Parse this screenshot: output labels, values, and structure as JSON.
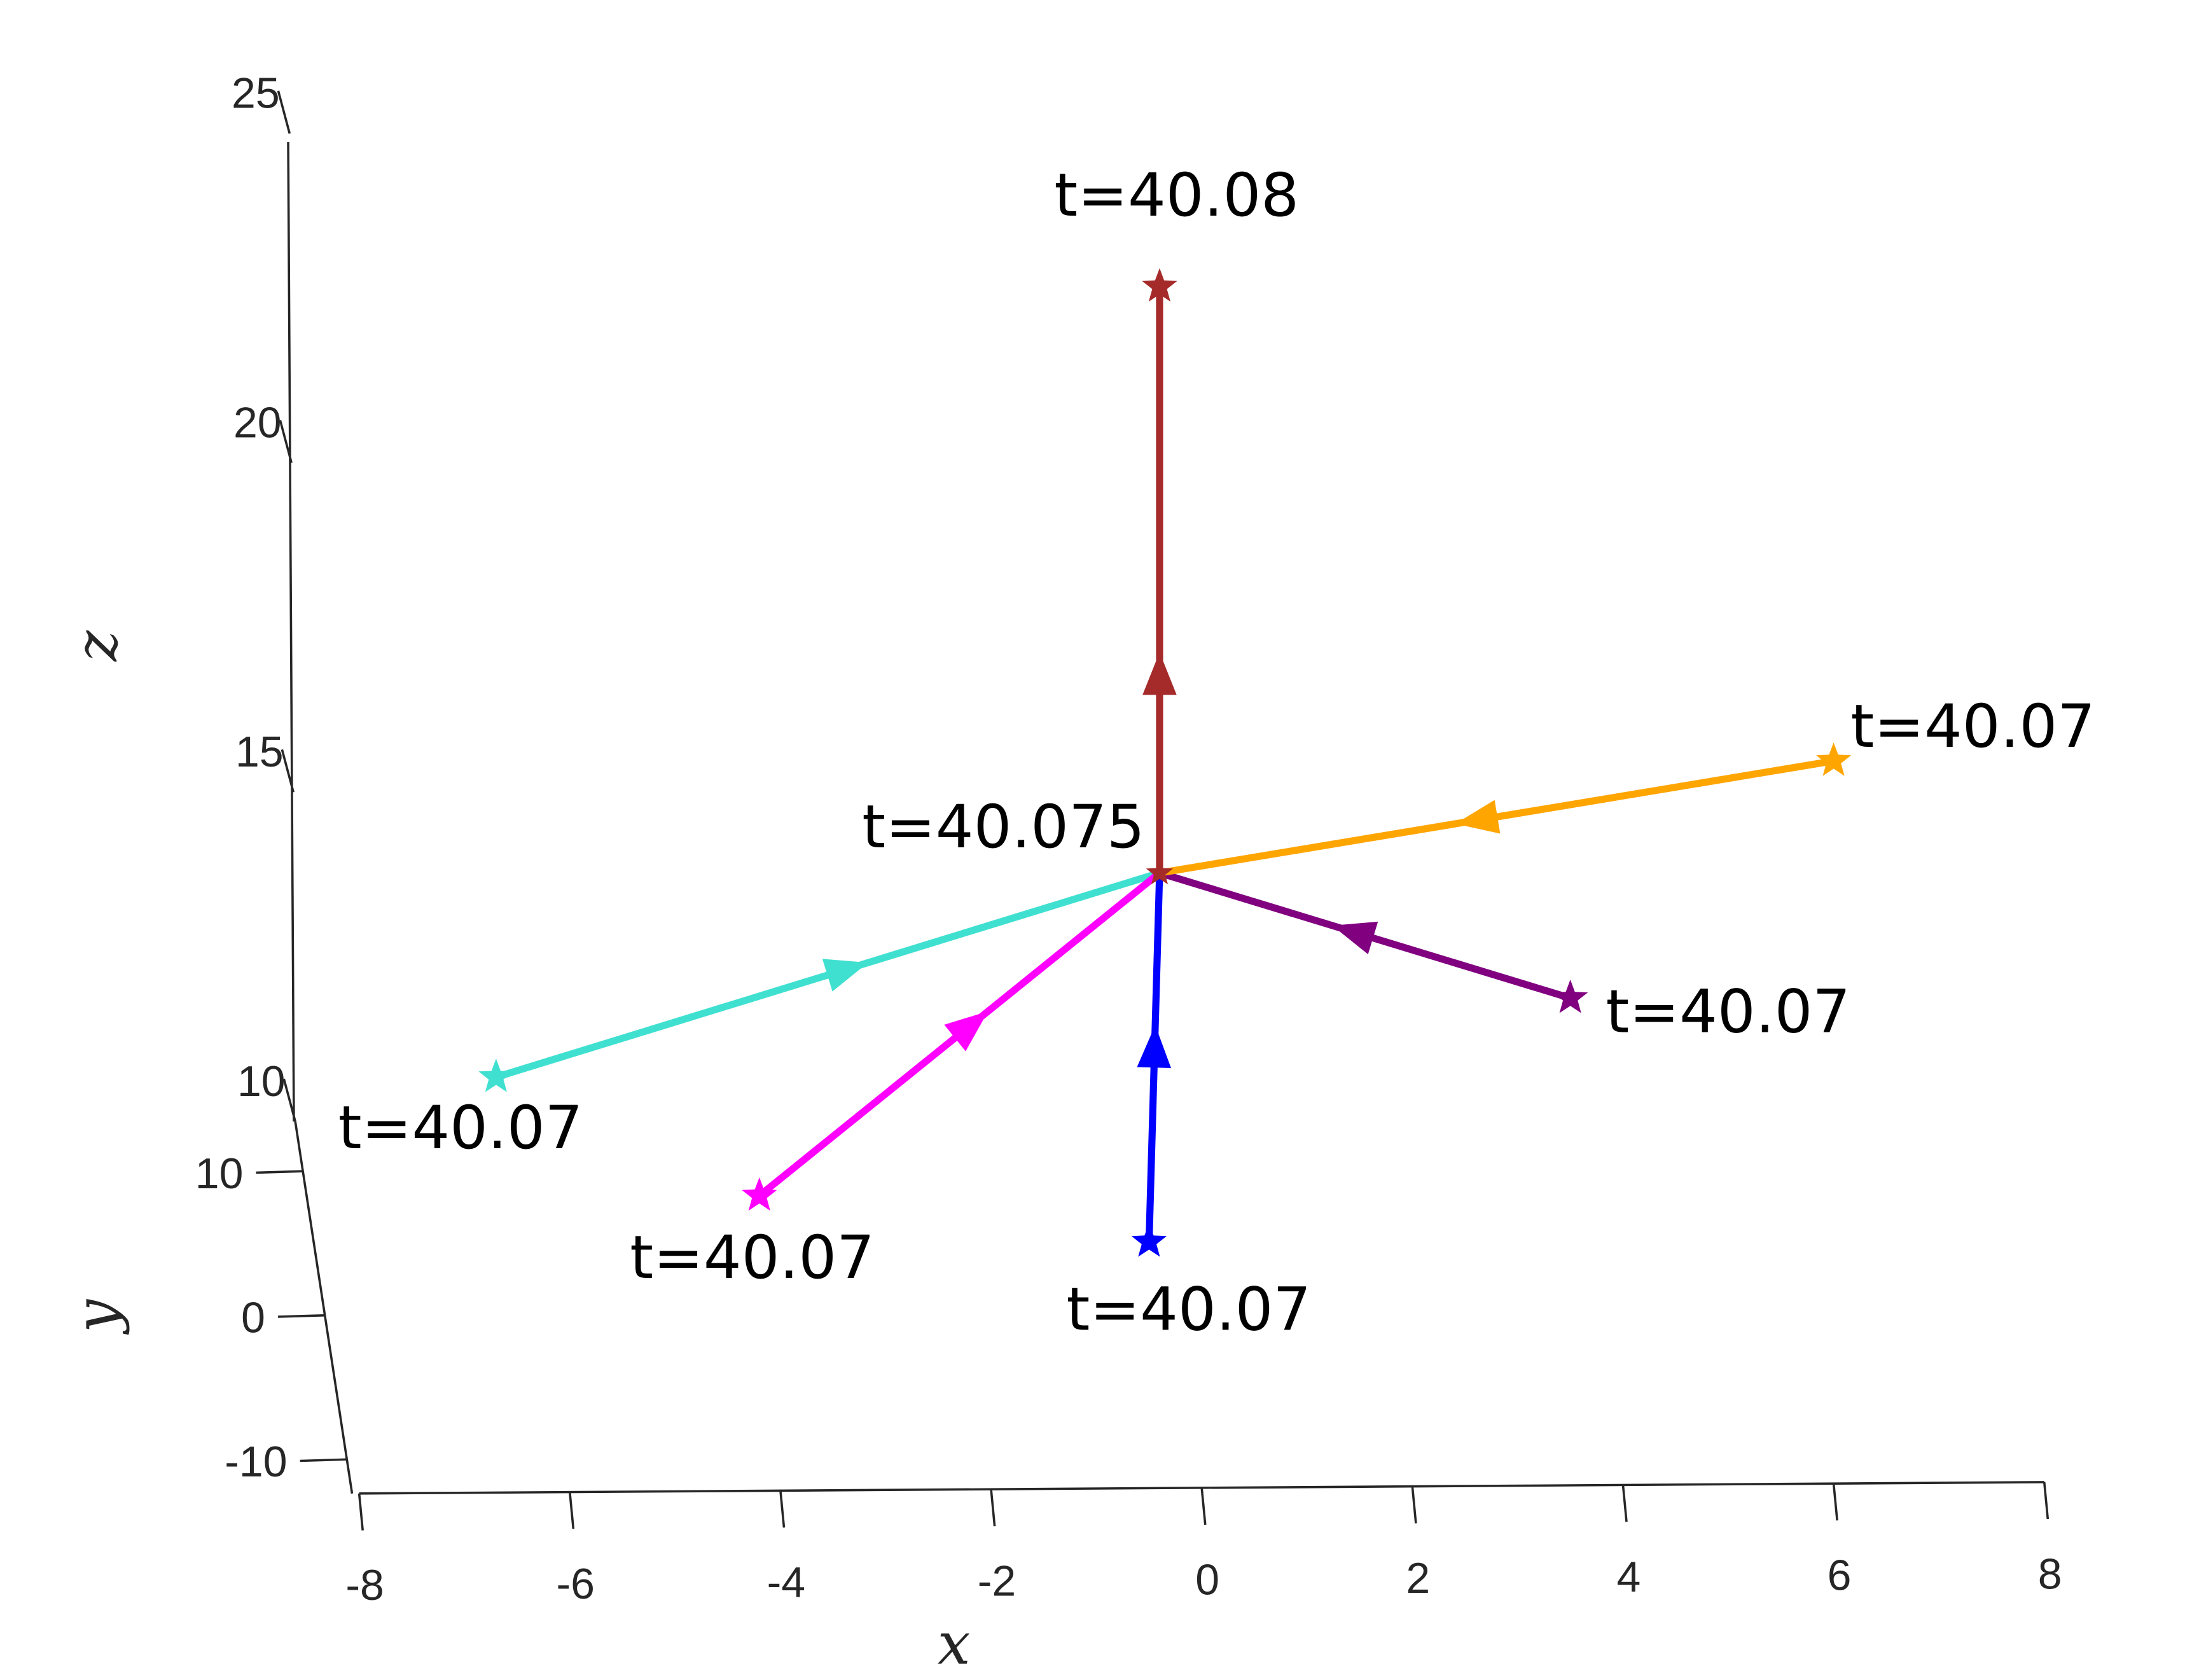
{
  "chart_data": {
    "type": "line",
    "projection": "3d",
    "xlabel": "x",
    "ylabel": "y",
    "zlabel": "z",
    "xlim": [
      -8,
      8
    ],
    "ylim": [
      -10,
      10
    ],
    "zlim": [
      10,
      25
    ],
    "x_ticks": [
      "-8",
      "-6",
      "-4",
      "-2",
      "0",
      "2",
      "4",
      "6",
      "8"
    ],
    "y_ticks": [
      "-10",
      "0",
      "10"
    ],
    "z_ticks": [
      "10",
      "15",
      "20",
      "25"
    ],
    "grid": false,
    "legend": "none",
    "center": {
      "x": -0.4,
      "y": 0,
      "z": 13.3,
      "label": "t=40.075"
    },
    "series": [
      {
        "color": "#40E0D0",
        "start": {
          "x": -6.7,
          "y": 0,
          "z": 10.2,
          "label": "t=40.07"
        }
      },
      {
        "color": "#FF00FF",
        "start": {
          "x": -4.2,
          "y": 0,
          "z": 8.4,
          "label": "t=40.07"
        }
      },
      {
        "color": "#0000FF",
        "start": {
          "x": -0.5,
          "y": 0,
          "z": 7.7,
          "label": "t=40.07"
        }
      },
      {
        "color": "#800080",
        "start": {
          "x": 3.5,
          "y": 0,
          "z": 11.4,
          "label": "t=40.07"
        }
      },
      {
        "color": "#FFA500",
        "start": {
          "x": 6.0,
          "y": 0,
          "z": 15.0,
          "label": "t=40.07"
        }
      },
      {
        "color": "#A52A2A",
        "start": {
          "x": -0.4,
          "y": 0,
          "z": 22.2,
          "label": "t=40.08"
        },
        "direction": "outward"
      }
    ]
  }
}
